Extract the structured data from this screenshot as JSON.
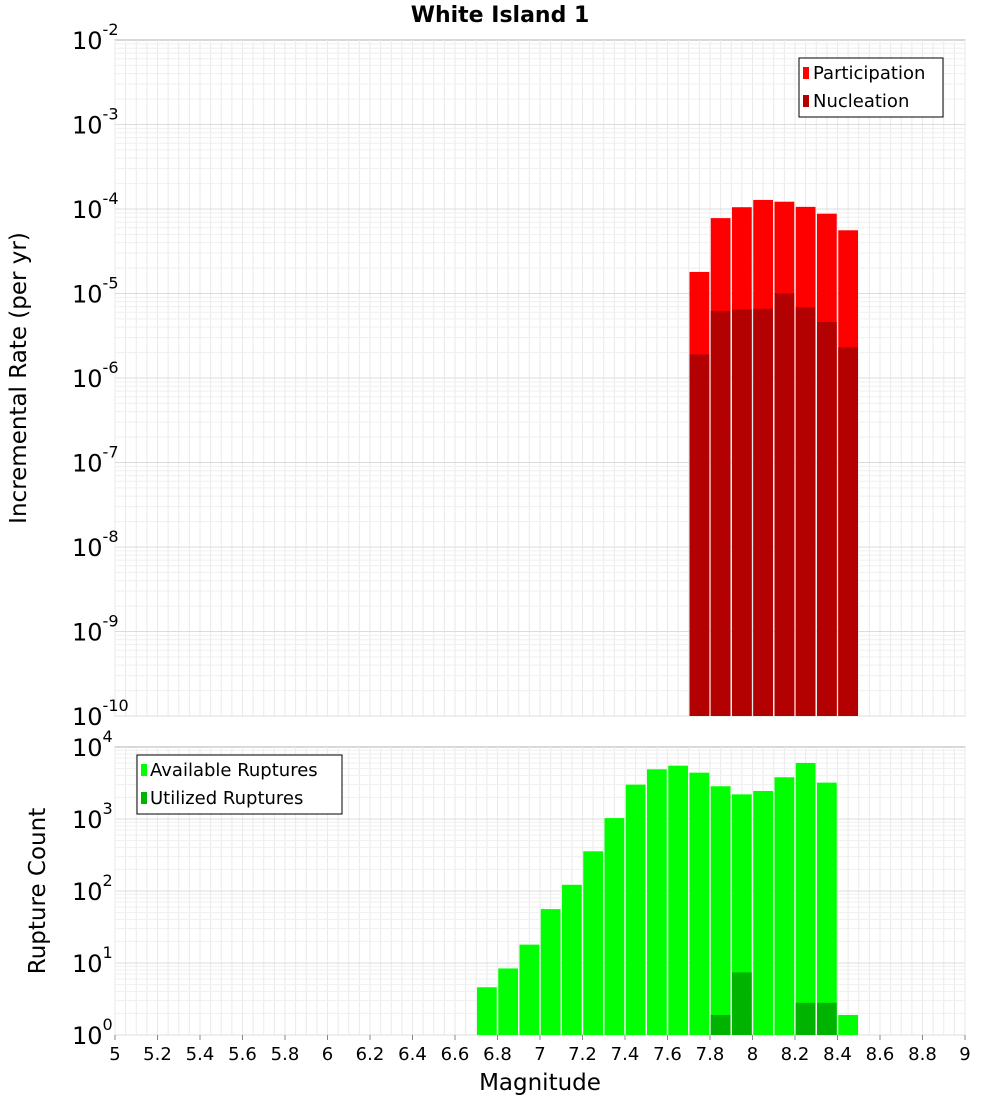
{
  "chart_data": {
    "title": "White Island 1",
    "xlabel": "Magnitude",
    "xlim": [
      5,
      9
    ],
    "x_ticks": [
      "5",
      "5.2",
      "5.4",
      "5.6",
      "5.8",
      "6",
      "6.2",
      "6.4",
      "6.6",
      "6.8",
      "7",
      "7.2",
      "7.4",
      "7.6",
      "7.8",
      "8",
      "8.2",
      "8.4",
      "8.6",
      "8.8",
      "9"
    ],
    "bin_width": 0.1,
    "panels": [
      {
        "type": "bar",
        "yscale": "log",
        "ylabel": "Incremental Rate (per yr)",
        "ylim_exp": [
          -10,
          -2
        ],
        "y_tick_exponents": [
          "-10",
          "-9",
          "-8",
          "-7",
          "-6",
          "-5",
          "-4",
          "-3",
          "-2"
        ],
        "legend": "top-right",
        "series": [
          {
            "name": "Participation",
            "color": "#ff0000",
            "x": [
              7.75,
              7.85,
              7.95,
              8.05,
              8.15,
              8.25,
              8.35,
              8.45
            ],
            "values": [
              1.8e-05,
              7.8e-05,
              0.000105,
              0.000128,
              0.000122,
              0.000106,
              8.8e-05,
              5.6e-05
            ]
          },
          {
            "name": "Nucleation",
            "color": "#b30000",
            "x": [
              7.75,
              7.85,
              7.95,
              8.05,
              8.15,
              8.25,
              8.35,
              8.45
            ],
            "values": [
              1.9e-06,
              6.2e-06,
              6.5e-06,
              6.6e-06,
              1e-05,
              6.9e-06,
              4.6e-06,
              2.3e-06
            ]
          }
        ]
      },
      {
        "type": "bar",
        "yscale": "log",
        "ylabel": "Rupture Count",
        "ylim_exp": [
          0,
          4
        ],
        "y_tick_exponents": [
          "0",
          "1",
          "2",
          "3",
          "4"
        ],
        "legend": "top-left",
        "series": [
          {
            "name": "Available Ruptures",
            "color": "#00ff00",
            "x": [
              6.75,
              6.85,
              6.95,
              7.05,
              7.15,
              7.25,
              7.35,
              7.45,
              7.55,
              7.65,
              7.75,
              7.85,
              7.95,
              8.05,
              8.15,
              8.25,
              8.35,
              8.45
            ],
            "values": [
              4.6,
              8.4,
              18,
              56,
              122,
              356,
              1030,
              3000,
              4900,
              5500,
              4400,
              2850,
              2200,
              2450,
              3800,
              6000,
              3200,
              1.9
            ]
          },
          {
            "name": "Utilized Ruptures",
            "color": "#00b300",
            "x": [
              7.85,
              7.95,
              8.05,
              8.15,
              8.25,
              8.35,
              8.45
            ],
            "values": [
              1.9,
              7.4,
              1,
              1,
              2.8,
              2.8,
              1
            ]
          }
        ]
      }
    ]
  }
}
